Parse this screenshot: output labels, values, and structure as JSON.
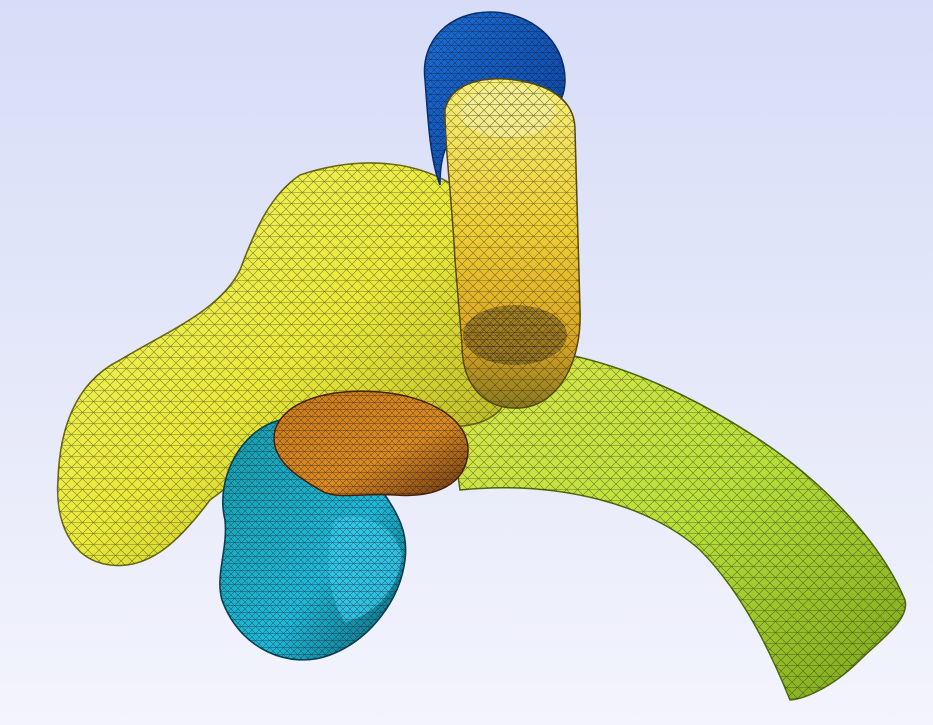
{
  "scene": {
    "background_top": "#d7ddf8",
    "background_bottom": "#f3f4fd",
    "mesh_line_color": "#1a1a10",
    "render_style": "wireframe-over-shaded",
    "colormap": [
      "#0b56c8",
      "#19b7d9",
      "#f0e23a",
      "#b8e234",
      "#e0901e",
      "#7a3a10"
    ]
  },
  "mesh_parts": [
    {
      "name": "left-lobe",
      "color": "#eef037"
    },
    {
      "name": "upper-tube",
      "color": "#f4d535"
    },
    {
      "name": "upper-tube-cap",
      "color": "#1d5ec8"
    },
    {
      "name": "right-tail",
      "color": "#b9e43b"
    },
    {
      "name": "lower-loop",
      "color": "#1fb7d6"
    },
    {
      "name": "lower-loop-cap",
      "color": "#d98a20"
    }
  ]
}
